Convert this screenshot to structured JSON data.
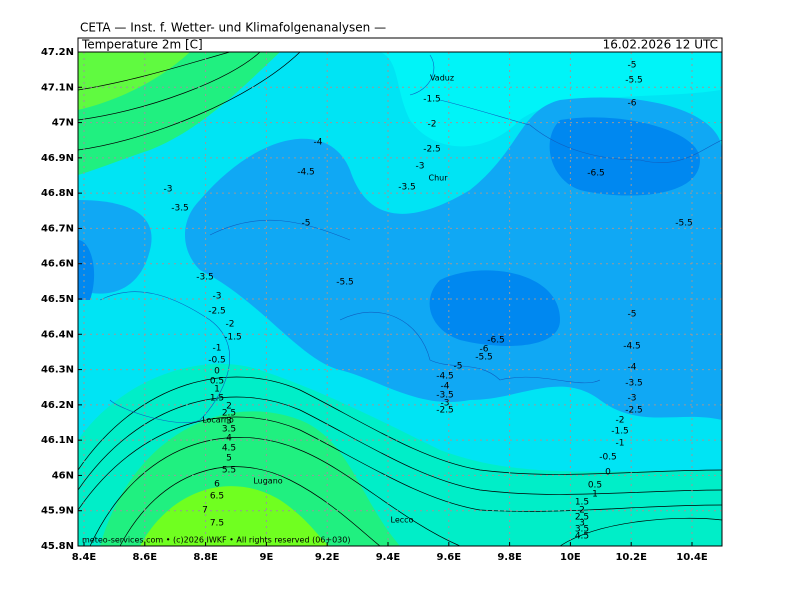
{
  "header": {
    "title": "CETA — Inst. f. Wetter- und Klimafolgenanalysen —",
    "product": "Temperature 2m [C]",
    "valid_time": "16.02.2026 12 UTC"
  },
  "footer": "meteo-services.com • (c)2026 IWKF • All rights reserved (06+030)",
  "axes": {
    "lat_labels": [
      "47.2N",
      "47.1N",
      "47N",
      "46.9N",
      "46.8N",
      "46.7N",
      "46.6N",
      "46.5N",
      "46.4N",
      "46.3N",
      "46.2N",
      "46.1N",
      "46N",
      "45.9N",
      "45.8N"
    ],
    "lon_labels": [
      "8.4E",
      "8.6E",
      "8.8E",
      "9E",
      "9.2E",
      "9.4E",
      "9.6E",
      "9.8E",
      "10E",
      "10.2E",
      "10.4E"
    ]
  },
  "places": [
    "Vaduz",
    "Chur",
    "Locarno",
    "Lugano",
    "Lecco"
  ],
  "contour_labels": [
    "-5",
    "-5.5",
    "-6",
    "-1.5",
    "-2",
    "-2.5",
    "-3",
    "-3.5",
    "-4",
    "-4.5",
    "-3",
    "-3.5",
    "-5",
    "-6.5",
    "-5.5",
    "-5.5",
    "-3.5",
    "-3",
    "-2.5",
    "-2",
    "-1.5",
    "-1",
    "-0.5",
    "0",
    "0.5",
    "1",
    "1.5",
    "2",
    "2.5",
    "3",
    "3.5",
    "4",
    "4.5",
    "5",
    "5.5",
    "6",
    "6.5",
    "7",
    "7.5",
    "-6.5",
    "-6",
    "-5.5",
    "-5",
    "-4.5",
    "-4",
    "-3.5",
    "-3",
    "-2.5",
    "-5",
    "-4.5",
    "-4",
    "-3.5",
    "-3",
    "-2.5",
    "-2",
    "-1.5",
    "-1",
    "-0.5",
    "0",
    "0.5",
    "1",
    "1.5",
    "2",
    "2.5",
    "3",
    "3.5",
    "4.5"
  ]
}
